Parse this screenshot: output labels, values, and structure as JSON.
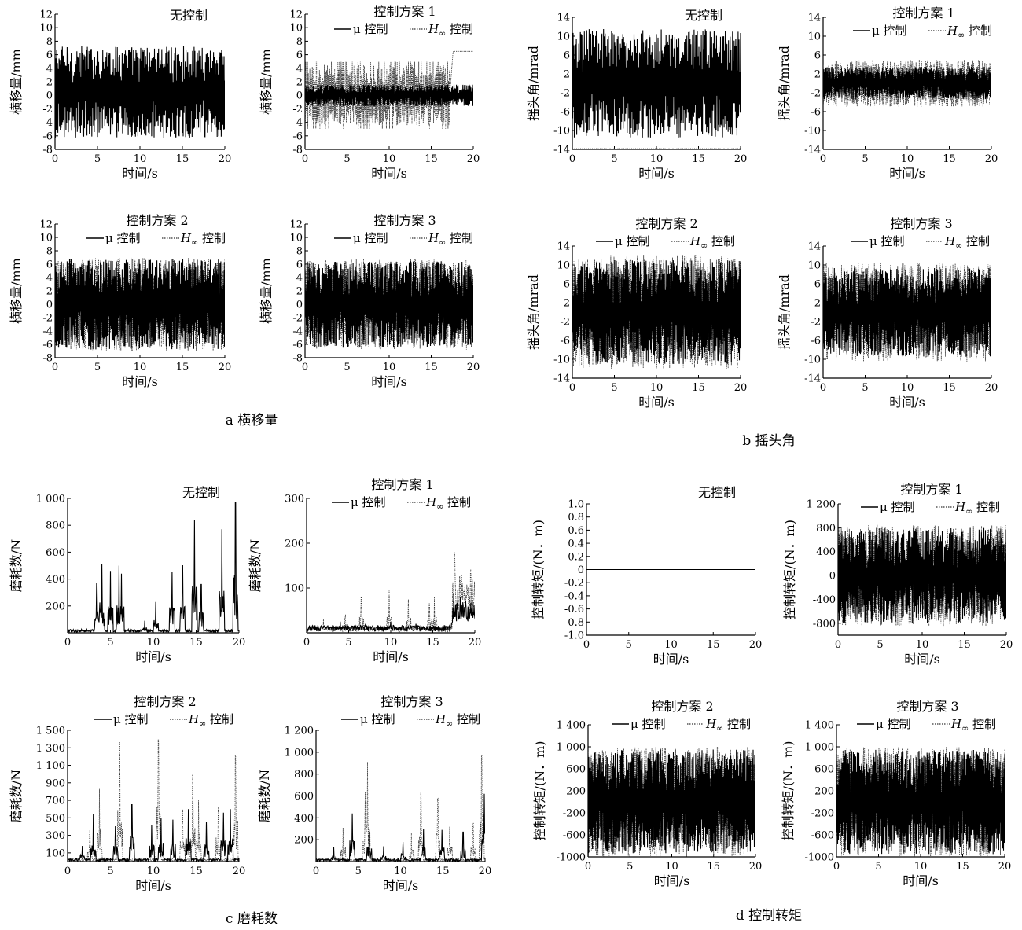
{
  "captions": {
    "a": "a 横移量",
    "b": "b 摇头角",
    "c": "c 磨耗数",
    "d": "d 控制转矩"
  },
  "legend": {
    "mu": "μ 控制",
    "hinf_h": "H",
    "hinf_sub": "∞",
    "hinf_rest": " 控制"
  },
  "colors": {
    "mu": "#000000",
    "hinf": "#333333",
    "axis": "#000000"
  },
  "chart_data": [
    {
      "id": "a1",
      "group": "a",
      "type": "line",
      "title": "无控制",
      "legend": false,
      "xlabel": "时间/s",
      "ylabel": "横移量/mm",
      "xlim": [
        0,
        20
      ],
      "ylim": [
        -8,
        12
      ],
      "xticks": [
        0,
        5,
        10,
        15,
        20
      ],
      "yticks": [
        -8,
        -6,
        -4,
        -2,
        0,
        2,
        4,
        6,
        8,
        10,
        12
      ],
      "ytick_labels": [
        "-8",
        "-6",
        "-4",
        "-2",
        "0",
        "2",
        "4",
        "6",
        "8",
        "10",
        "12"
      ],
      "series": [
        {
          "key": "none",
          "style": "solid",
          "pattern": "lat_none",
          "amplitude": 6.8,
          "offset": 0.5
        }
      ]
    },
    {
      "id": "a2",
      "group": "a",
      "type": "line",
      "title": "控制方案 1",
      "legend": true,
      "xlabel": "时间/s",
      "ylabel": "横移量/mm",
      "xlim": [
        0,
        20
      ],
      "ylim": [
        -8,
        12
      ],
      "xticks": [
        0,
        5,
        10,
        15,
        20
      ],
      "yticks": [
        -8,
        -6,
        -4,
        -2,
        0,
        2,
        4,
        6,
        8,
        10,
        12
      ],
      "ytick_labels": [
        "-8",
        "-6",
        "-4",
        "-2",
        "0",
        "2",
        "4",
        "6",
        "8",
        "10",
        "12"
      ],
      "series": [
        {
          "key": "hinf",
          "name": "H∞ 控制",
          "style": "dotted",
          "pattern": "lat_s1_hinf",
          "amplitude": 4.5,
          "plateau_after": 17.2,
          "plateau_value": 6.5
        },
        {
          "key": "mu",
          "name": "μ 控制",
          "style": "solid",
          "pattern": "noise",
          "amplitude": 1.6
        }
      ]
    },
    {
      "id": "a3",
      "group": "a",
      "type": "line",
      "title": "控制方案 2",
      "legend": true,
      "xlabel": "时间/s",
      "ylabel": "横移量/mm",
      "xlim": [
        0,
        20
      ],
      "ylim": [
        -8,
        12
      ],
      "xticks": [
        0,
        5,
        10,
        15,
        20
      ],
      "yticks": [
        -8,
        -6,
        -4,
        -2,
        0,
        2,
        4,
        6,
        8,
        10,
        12
      ],
      "ytick_labels": [
        "-8",
        "-6",
        "-4",
        "-2",
        "0",
        "2",
        "4",
        "6",
        "8",
        "10",
        "12"
      ],
      "series": [
        {
          "key": "hinf",
          "name": "H∞ 控制",
          "style": "dotted",
          "pattern": "noise",
          "amplitude": 7.0
        },
        {
          "key": "mu",
          "name": "μ 控制",
          "style": "solid",
          "pattern": "noise",
          "amplitude": 6.8
        }
      ]
    },
    {
      "id": "a4",
      "group": "a",
      "type": "line",
      "title": "控制方案 3",
      "legend": true,
      "xlabel": "时间/s",
      "ylabel": "横移量/mm",
      "xlim": [
        0,
        20
      ],
      "ylim": [
        -8,
        12
      ],
      "xticks": [
        0,
        5,
        10,
        15,
        20
      ],
      "yticks": [
        -8,
        -6,
        -4,
        -2,
        0,
        2,
        4,
        6,
        8,
        10,
        12
      ],
      "ytick_labels": [
        "-8",
        "-6",
        "-4",
        "-2",
        "0",
        "2",
        "4",
        "6",
        "8",
        "10",
        "12"
      ],
      "series": [
        {
          "key": "hinf",
          "name": "H∞ 控制",
          "style": "dotted",
          "pattern": "noise",
          "amplitude": 6.8
        },
        {
          "key": "mu",
          "name": "μ 控制",
          "style": "solid",
          "pattern": "noise",
          "amplitude": 6.5
        }
      ]
    },
    {
      "id": "b1",
      "group": "b",
      "type": "line",
      "title": "无控制",
      "legend": false,
      "xlabel": "时间/s",
      "ylabel": "摇头角/mrad",
      "xlim": [
        0,
        20
      ],
      "ylim": [
        -14,
        14
      ],
      "xticks": [
        0,
        5,
        10,
        15,
        20
      ],
      "yticks": [
        -14,
        -10,
        -6,
        -2,
        2,
        6,
        10,
        14
      ],
      "ytick_labels": [
        "-14",
        "-10",
        "-6",
        "-2",
        "2",
        "6",
        "10",
        "14"
      ],
      "series": [
        {
          "key": "none",
          "style": "solid",
          "pattern": "noise",
          "amplitude": 11.5
        }
      ]
    },
    {
      "id": "b2",
      "group": "b",
      "type": "line",
      "title": "控制方案 1",
      "legend": true,
      "xlabel": "时间/s",
      "ylabel": "摇头角/mrad",
      "xlim": [
        0,
        20
      ],
      "ylim": [
        -14,
        14
      ],
      "xticks": [
        0,
        5,
        10,
        15,
        20
      ],
      "yticks": [
        -14,
        -10,
        -6,
        -2,
        2,
        6,
        10,
        14
      ],
      "ytick_labels": [
        "-14",
        "-10",
        "-6",
        "-2",
        "2",
        "6",
        "10",
        "14"
      ],
      "series": [
        {
          "key": "hinf",
          "name": "H∞ 控制",
          "style": "dotted",
          "pattern": "noise",
          "amplitude": 5.0
        },
        {
          "key": "mu",
          "name": "μ 控制",
          "style": "solid",
          "pattern": "noise",
          "amplitude": 3.5
        }
      ]
    },
    {
      "id": "b3",
      "group": "b",
      "type": "line",
      "title": "控制方案 2",
      "legend": true,
      "xlabel": "时间/s",
      "ylabel": "摇头角/mrad",
      "xlim": [
        0,
        20
      ],
      "ylim": [
        -14,
        14
      ],
      "xticks": [
        0,
        5,
        10,
        15,
        20
      ],
      "yticks": [
        -14,
        -10,
        -6,
        -2,
        2,
        6,
        10,
        14
      ],
      "ytick_labels": [
        "-14",
        "-10",
        "-6",
        "-2",
        "2",
        "6",
        "10",
        "14"
      ],
      "series": [
        {
          "key": "hinf",
          "name": "H∞ 控制",
          "style": "dotted",
          "pattern": "noise",
          "amplitude": 12.0
        },
        {
          "key": "mu",
          "name": "μ 控制",
          "style": "solid",
          "pattern": "noise",
          "amplitude": 11.0
        }
      ]
    },
    {
      "id": "b4",
      "group": "b",
      "type": "line",
      "title": "控制方案 3",
      "legend": true,
      "xlabel": "时间/s",
      "ylabel": "摇头角/mrad",
      "xlim": [
        0,
        20
      ],
      "ylim": [
        -14,
        14
      ],
      "xticks": [
        0,
        5,
        10,
        15,
        20
      ],
      "yticks": [
        -14,
        -10,
        -6,
        -2,
        2,
        6,
        10,
        14
      ],
      "ytick_labels": [
        "-14",
        "-10",
        "-6",
        "-2",
        "2",
        "6",
        "10",
        "14"
      ],
      "series": [
        {
          "key": "hinf",
          "name": "H∞ 控制",
          "style": "dotted",
          "pattern": "noise",
          "amplitude": 10.5
        },
        {
          "key": "mu",
          "name": "μ 控制",
          "style": "solid",
          "pattern": "noise",
          "amplitude": 9.5
        }
      ]
    },
    {
      "id": "c1",
      "group": "c",
      "type": "line",
      "title": "无控制",
      "legend": false,
      "xlabel": "时间/s",
      "ylabel": "磨耗数/N",
      "xlim": [
        0,
        20
      ],
      "ylim": [
        0,
        1000
      ],
      "xticks": [
        0,
        5,
        10,
        15,
        20
      ],
      "yticks": [
        200,
        400,
        600,
        800,
        1000
      ],
      "ytick_labels": [
        "200",
        "400",
        "600",
        "800",
        "1 000"
      ],
      "series": [
        {
          "key": "none",
          "style": "solid",
          "pattern": "spikes",
          "base": 15,
          "spikes": [
            [
              3.4,
              370
            ],
            [
              4.0,
              510
            ],
            [
              5.0,
              460
            ],
            [
              6.0,
              500
            ],
            [
              6.3,
              440
            ],
            [
              9.0,
              90
            ],
            [
              10.3,
              230
            ],
            [
              12.2,
              450
            ],
            [
              13.4,
              500
            ],
            [
              14.8,
              840
            ],
            [
              15.6,
              360
            ],
            [
              18.0,
              770
            ],
            [
              19.6,
              970
            ]
          ]
        }
      ]
    },
    {
      "id": "c2",
      "group": "c",
      "type": "line",
      "title": "控制方案 1",
      "legend": true,
      "xlabel": "时间/s",
      "ylabel": "磨耗数/N",
      "xlim": [
        0,
        20
      ],
      "ylim": [
        0,
        300
      ],
      "xticks": [
        0,
        5,
        10,
        15,
        20
      ],
      "yticks": [
        100,
        200,
        300
      ],
      "ytick_labels": [
        "100",
        "200",
        "300"
      ],
      "series": [
        {
          "key": "hinf",
          "name": "H∞ 控制",
          "style": "dotted",
          "pattern": "spikes",
          "base": 8,
          "spikes": [
            [
              2.0,
              30
            ],
            [
              4.6,
              40
            ],
            [
              6.5,
              80
            ],
            [
              9.8,
              95
            ],
            [
              12.1,
              75
            ],
            [
              14.6,
              65
            ],
            [
              15.2,
              80
            ],
            [
              17.6,
              180
            ],
            [
              18.4,
              130
            ],
            [
              19.5,
              140
            ]
          ],
          "busy_after": 17.3,
          "busy_level": 90
        },
        {
          "key": "mu",
          "name": "μ 控制",
          "style": "solid",
          "pattern": "spikes",
          "base": 10,
          "spikes": [
            [
              4.0,
              25
            ],
            [
              7.0,
              20
            ],
            [
              10.0,
              25
            ],
            [
              13.0,
              20
            ],
            [
              17.5,
              70
            ],
            [
              18.3,
              80
            ],
            [
              19.6,
              40
            ]
          ],
          "busy_after": 17.3,
          "busy_level": 45
        }
      ]
    },
    {
      "id": "c3",
      "group": "c",
      "type": "line",
      "title": "控制方案 2",
      "legend": true,
      "xlabel": "时间/s",
      "ylabel": "磨耗数/N",
      "xlim": [
        0,
        20
      ],
      "ylim": [
        0,
        1500
      ],
      "xticks": [
        0,
        5,
        10,
        15,
        20
      ],
      "yticks": [
        100,
        300,
        500,
        700,
        900,
        1100,
        1300,
        1500
      ],
      "ytick_labels": [
        "100",
        "300",
        "500",
        "700",
        "900",
        "1 100",
        "1 300",
        "1 500"
      ],
      "series": [
        {
          "key": "hinf",
          "name": "H∞ 控制",
          "style": "dotted",
          "pattern": "spikes",
          "base": 20,
          "spikes": [
            [
              2.6,
              350
            ],
            [
              3.7,
              830
            ],
            [
              6.1,
              1380
            ],
            [
              10.6,
              1390
            ],
            [
              13.4,
              590
            ],
            [
              14.6,
              1000
            ],
            [
              15.3,
              700
            ],
            [
              17.6,
              620
            ],
            [
              19.6,
              1210
            ]
          ]
        },
        {
          "key": "mu",
          "name": "μ 控制",
          "style": "solid",
          "pattern": "spikes",
          "base": 20,
          "spikes": [
            [
              1.7,
              180
            ],
            [
              3.0,
              540
            ],
            [
              5.6,
              400
            ],
            [
              7.5,
              650
            ],
            [
              9.8,
              420
            ],
            [
              10.9,
              500
            ],
            [
              12.3,
              480
            ],
            [
              14.1,
              600
            ],
            [
              16.2,
              450
            ],
            [
              18.2,
              560
            ],
            [
              19.0,
              600
            ]
          ]
        }
      ]
    },
    {
      "id": "c4",
      "group": "c",
      "type": "line",
      "title": "控制方案 3",
      "legend": true,
      "xlabel": "时间/s",
      "ylabel": "磨耗数/N",
      "xlim": [
        0,
        20
      ],
      "ylim": [
        0,
        1200
      ],
      "xticks": [
        0,
        5,
        10,
        15,
        20
      ],
      "yticks": [
        200,
        400,
        600,
        800,
        1000,
        1200
      ],
      "ytick_labels": [
        "200",
        "400",
        "600",
        "800",
        "1 000",
        "1 200"
      ],
      "series": [
        {
          "key": "hinf",
          "name": "H∞ 控制",
          "style": "dotted",
          "pattern": "spikes",
          "base": 15,
          "spikes": [
            [
              3.2,
              310
            ],
            [
              5.8,
              640
            ],
            [
              6.1,
              910
            ],
            [
              11.3,
              260
            ],
            [
              12.4,
              630
            ],
            [
              14.4,
              580
            ],
            [
              15.8,
              320
            ],
            [
              18.6,
              350
            ],
            [
              19.6,
              970
            ]
          ]
        },
        {
          "key": "mu",
          "name": "μ 控制",
          "style": "solid",
          "pattern": "spikes",
          "base": 15,
          "spikes": [
            [
              2.1,
              130
            ],
            [
              4.3,
              440
            ],
            [
              6.3,
              300
            ],
            [
              8.0,
              140
            ],
            [
              10.3,
              180
            ],
            [
              12.7,
              300
            ],
            [
              14.9,
              290
            ],
            [
              17.4,
              270
            ],
            [
              19.9,
              620
            ]
          ]
        }
      ]
    },
    {
      "id": "d1",
      "group": "d",
      "type": "line",
      "title": "无控制",
      "legend": false,
      "xlabel": "时间/s",
      "ylabel": "控制转矩/(N．m)",
      "xlim": [
        0,
        20
      ],
      "ylim": [
        -1.0,
        1.0
      ],
      "xticks": [
        0,
        5,
        10,
        15,
        20
      ],
      "yticks": [
        -1.0,
        -0.8,
        -0.6,
        -0.4,
        -0.2,
        0,
        0.2,
        0.4,
        0.6,
        0.8,
        1.0
      ],
      "ytick_labels": [
        "-1.0",
        "-0.8",
        "-0.6",
        "-0.4",
        "-0.2",
        "0",
        "0.2",
        "0.4",
        "0.6",
        "0.8",
        "1.0"
      ],
      "series": [
        {
          "key": "none",
          "style": "solid",
          "pattern": "flat",
          "value": 0
        }
      ]
    },
    {
      "id": "d2",
      "group": "d",
      "type": "line",
      "title": "控制方案 1",
      "legend": true,
      "xlabel": "时间/s",
      "ylabel": "控制转矩/(N．m)",
      "xlim": [
        0,
        20
      ],
      "ylim": [
        -1000,
        1200
      ],
      "xticks": [
        0,
        5,
        10,
        15,
        20
      ],
      "yticks": [
        -800,
        -400,
        0,
        400,
        800,
        1200
      ],
      "ytick_labels": [
        "-800",
        "-400",
        "0",
        "400",
        "800",
        "1 200"
      ],
      "series": [
        {
          "key": "hinf",
          "name": "H∞ 控制",
          "style": "dotted",
          "pattern": "noise",
          "amplitude": 850
        },
        {
          "key": "mu",
          "name": "μ 控制",
          "style": "solid",
          "pattern": "noise",
          "amplitude": 800
        }
      ]
    },
    {
      "id": "d3",
      "group": "d",
      "type": "line",
      "title": "控制方案 2",
      "legend": true,
      "xlabel": "时间/s",
      "ylabel": "控制转矩/(N．m)",
      "xlim": [
        0,
        20
      ],
      "ylim": [
        -1000,
        1400
      ],
      "xticks": [
        0,
        5,
        10,
        15,
        20
      ],
      "yticks": [
        -1000,
        -600,
        -200,
        200,
        600,
        1000,
        1400
      ],
      "ytick_labels": [
        "-1000",
        "-600",
        "-200",
        "200",
        "600",
        "1 000",
        "1 400"
      ],
      "series": [
        {
          "key": "hinf",
          "name": "H∞ 控制",
          "style": "dotted",
          "pattern": "noise",
          "amplitude": 1000
        },
        {
          "key": "mu",
          "name": "μ 控制",
          "style": "solid",
          "pattern": "noise",
          "amplitude": 950
        }
      ]
    },
    {
      "id": "d4",
      "group": "d",
      "type": "line",
      "title": "控制方案 3",
      "legend": true,
      "xlabel": "时间/s",
      "ylabel": "控制转矩/(N．m)",
      "xlim": [
        0,
        20
      ],
      "ylim": [
        -1000,
        1400
      ],
      "xticks": [
        0,
        5,
        10,
        15,
        20
      ],
      "yticks": [
        -1000,
        -600,
        -200,
        200,
        600,
        1000,
        1400
      ],
      "ytick_labels": [
        "-1000",
        "-600",
        "-200",
        "200",
        "600",
        "1 000",
        "1 400"
      ],
      "series": [
        {
          "key": "hinf",
          "name": "H∞ 控制",
          "style": "dotted",
          "pattern": "noise",
          "amplitude": 1000
        },
        {
          "key": "mu",
          "name": "μ 控制",
          "style": "solid",
          "pattern": "noise",
          "amplitude": 950
        }
      ]
    }
  ]
}
